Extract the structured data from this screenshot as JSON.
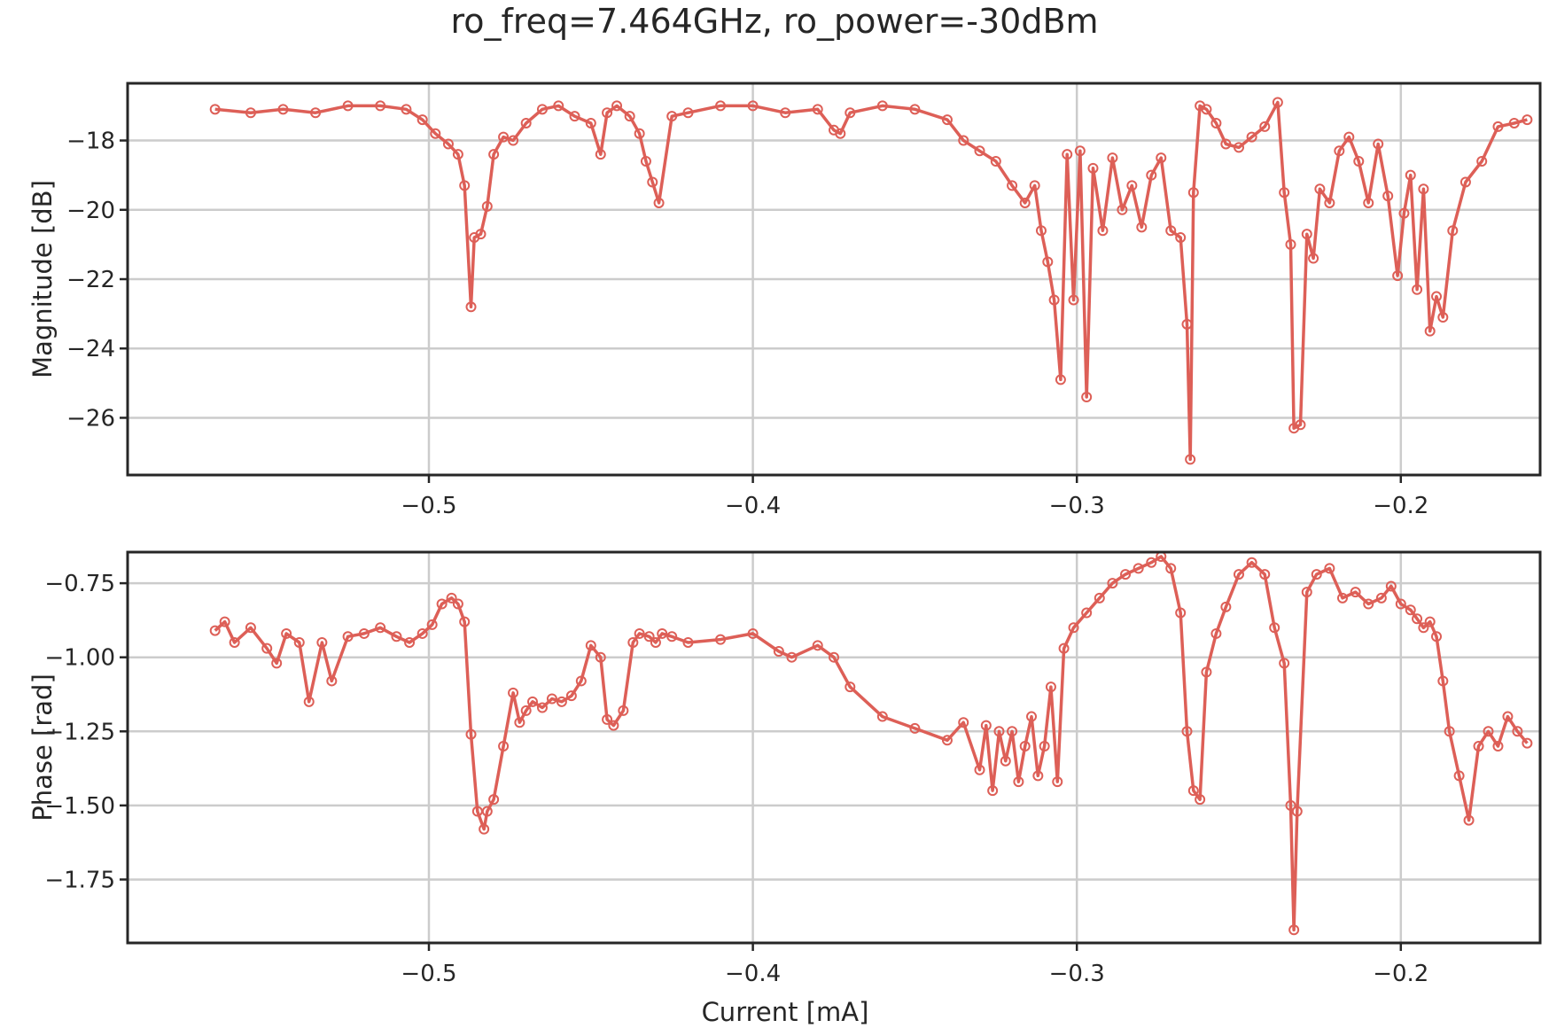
{
  "title": "ro_freq=7.464GHz, ro_power=-30dBm",
  "colors": {
    "series": "#dd5f57",
    "grid": "#cccccc",
    "axes": "#262626"
  },
  "chart_data": [
    {
      "type": "line",
      "ylabel": "Magnitude [dB]",
      "xlabel": "",
      "xlim": [
        -0.593,
        -0.157
      ],
      "ylim": [
        -27.65,
        -16.35
      ],
      "xticks": [
        -0.5,
        -0.4,
        -0.3,
        -0.2
      ],
      "xtick_labels": [
        "−0.5",
        "−0.4",
        "−0.3",
        "−0.2"
      ],
      "yticks": [
        -18,
        -20,
        -22,
        -24,
        -26
      ],
      "ytick_labels": [
        "−18",
        "−20",
        "−22",
        "−24",
        "−26"
      ],
      "grid": true,
      "marker": "open-circle",
      "x": [
        -0.566,
        -0.555,
        -0.545,
        -0.535,
        -0.525,
        -0.515,
        -0.507,
        -0.502,
        -0.498,
        -0.494,
        -0.491,
        -0.489,
        -0.487,
        -0.486,
        -0.484,
        -0.482,
        -0.48,
        -0.477,
        -0.474,
        -0.47,
        -0.465,
        -0.46,
        -0.455,
        -0.45,
        -0.447,
        -0.445,
        -0.442,
        -0.438,
        -0.435,
        -0.433,
        -0.431,
        -0.429,
        -0.425,
        -0.42,
        -0.41,
        -0.4,
        -0.39,
        -0.38,
        -0.375,
        -0.373,
        -0.37,
        -0.36,
        -0.35,
        -0.34,
        -0.335,
        -0.33,
        -0.325,
        -0.32,
        -0.316,
        -0.313,
        -0.311,
        -0.309,
        -0.307,
        -0.305,
        -0.303,
        -0.301,
        -0.299,
        -0.297,
        -0.295,
        -0.292,
        -0.289,
        -0.286,
        -0.283,
        -0.28,
        -0.277,
        -0.274,
        -0.271,
        -0.268,
        -0.266,
        -0.265,
        -0.264,
        -0.262,
        -0.26,
        -0.257,
        -0.254,
        -0.25,
        -0.246,
        -0.242,
        -0.238,
        -0.236,
        -0.234,
        -0.233,
        -0.231,
        -0.229,
        -0.227,
        -0.225,
        -0.222,
        -0.219,
        -0.216,
        -0.213,
        -0.21,
        -0.207,
        -0.204,
        -0.201,
        -0.199,
        -0.197,
        -0.195,
        -0.193,
        -0.191,
        -0.189,
        -0.187,
        -0.184,
        -0.18,
        -0.175,
        -0.17,
        -0.165,
        -0.161
      ],
      "y": [
        -17.1,
        -17.2,
        -17.1,
        -17.2,
        -17.0,
        -17.0,
        -17.1,
        -17.4,
        -17.8,
        -18.1,
        -18.4,
        -19.3,
        -22.8,
        -20.8,
        -20.7,
        -19.9,
        -18.4,
        -17.9,
        -18.0,
        -17.5,
        -17.1,
        -17.0,
        -17.3,
        -17.5,
        -18.4,
        -17.2,
        -17.0,
        -17.3,
        -17.8,
        -18.6,
        -19.2,
        -19.8,
        -17.3,
        -17.2,
        -17.0,
        -17.0,
        -17.2,
        -17.1,
        -17.7,
        -17.8,
        -17.2,
        -17.0,
        -17.1,
        -17.4,
        -18.0,
        -18.3,
        -18.6,
        -19.3,
        -19.8,
        -19.3,
        -20.6,
        -21.5,
        -22.6,
        -24.9,
        -18.4,
        -22.6,
        -18.3,
        -25.4,
        -18.8,
        -20.6,
        -18.5,
        -20.0,
        -19.3,
        -20.5,
        -19.0,
        -18.5,
        -20.6,
        -20.8,
        -23.3,
        -27.2,
        -19.5,
        -17.0,
        -17.1,
        -17.5,
        -18.1,
        -18.2,
        -17.9,
        -17.6,
        -16.9,
        -19.5,
        -21.0,
        -26.3,
        -26.2,
        -20.7,
        -21.4,
        -19.4,
        -19.8,
        -18.3,
        -17.9,
        -18.6,
        -19.8,
        -18.1,
        -19.6,
        -21.9,
        -20.1,
        -19.0,
        -22.3,
        -19.4,
        -23.5,
        -22.5,
        -23.1,
        -20.6,
        -19.2,
        -18.6,
        -17.6,
        -17.5,
        -17.4
      ]
    },
    {
      "type": "line",
      "ylabel": "Phase [rad]",
      "xlabel": "Current [mA]",
      "xlim": [
        -0.593,
        -0.157
      ],
      "ylim": [
        -1.964,
        -0.645
      ],
      "xticks": [
        -0.5,
        -0.4,
        -0.3,
        -0.2
      ],
      "xtick_labels": [
        "−0.5",
        "−0.4",
        "−0.3",
        "−0.2"
      ],
      "yticks": [
        -0.75,
        -1.0,
        -1.25,
        -1.5,
        -1.75
      ],
      "ytick_labels": [
        "−0.75",
        "−1.00",
        "−1.25",
        "−1.50",
        "−1.75"
      ],
      "grid": true,
      "marker": "open-circle",
      "x": [
        -0.566,
        -0.563,
        -0.56,
        -0.555,
        -0.55,
        -0.547,
        -0.544,
        -0.54,
        -0.537,
        -0.533,
        -0.53,
        -0.525,
        -0.52,
        -0.515,
        -0.51,
        -0.506,
        -0.502,
        -0.499,
        -0.496,
        -0.493,
        -0.491,
        -0.489,
        -0.487,
        -0.485,
        -0.483,
        -0.482,
        -0.48,
        -0.477,
        -0.474,
        -0.472,
        -0.47,
        -0.468,
        -0.465,
        -0.462,
        -0.459,
        -0.456,
        -0.453,
        -0.45,
        -0.447,
        -0.445,
        -0.443,
        -0.44,
        -0.437,
        -0.435,
        -0.432,
        -0.43,
        -0.428,
        -0.425,
        -0.42,
        -0.41,
        -0.4,
        -0.392,
        -0.388,
        -0.38,
        -0.375,
        -0.37,
        -0.36,
        -0.35,
        -0.34,
        -0.335,
        -0.33,
        -0.328,
        -0.326,
        -0.324,
        -0.322,
        -0.32,
        -0.318,
        -0.316,
        -0.314,
        -0.312,
        -0.31,
        -0.308,
        -0.306,
        -0.304,
        -0.301,
        -0.297,
        -0.293,
        -0.289,
        -0.285,
        -0.281,
        -0.277,
        -0.274,
        -0.271,
        -0.268,
        -0.266,
        -0.264,
        -0.262,
        -0.26,
        -0.257,
        -0.254,
        -0.25,
        -0.246,
        -0.242,
        -0.239,
        -0.236,
        -0.234,
        -0.233,
        -0.232,
        -0.229,
        -0.226,
        -0.222,
        -0.218,
        -0.214,
        -0.21,
        -0.206,
        -0.203,
        -0.2,
        -0.197,
        -0.195,
        -0.193,
        -0.191,
        -0.189,
        -0.187,
        -0.185,
        -0.182,
        -0.179,
        -0.176,
        -0.173,
        -0.17,
        -0.167,
        -0.164,
        -0.161
      ],
      "y": [
        -0.91,
        -0.88,
        -0.95,
        -0.9,
        -0.97,
        -1.02,
        -0.92,
        -0.95,
        -1.15,
        -0.95,
        -1.08,
        -0.93,
        -0.92,
        -0.9,
        -0.93,
        -0.95,
        -0.92,
        -0.89,
        -0.82,
        -0.8,
        -0.82,
        -0.88,
        -1.26,
        -1.52,
        -1.58,
        -1.52,
        -1.48,
        -1.3,
        -1.12,
        -1.22,
        -1.18,
        -1.15,
        -1.17,
        -1.14,
        -1.15,
        -1.13,
        -1.08,
        -0.96,
        -1.0,
        -1.21,
        -1.23,
        -1.18,
        -0.95,
        -0.92,
        -0.93,
        -0.95,
        -0.92,
        -0.93,
        -0.95,
        -0.94,
        -0.92,
        -0.98,
        -1.0,
        -0.96,
        -1.0,
        -1.1,
        -1.2,
        -1.24,
        -1.28,
        -1.22,
        -1.38,
        -1.23,
        -1.45,
        -1.25,
        -1.35,
        -1.25,
        -1.42,
        -1.3,
        -1.2,
        -1.4,
        -1.3,
        -1.1,
        -1.42,
        -0.97,
        -0.9,
        -0.85,
        -0.8,
        -0.75,
        -0.72,
        -0.7,
        -0.68,
        -0.66,
        -0.7,
        -0.85,
        -1.25,
        -1.45,
        -1.48,
        -1.05,
        -0.92,
        -0.83,
        -0.72,
        -0.68,
        -0.72,
        -0.9,
        -1.02,
        -1.5,
        -1.92,
        -1.52,
        -0.78,
        -0.72,
        -0.7,
        -0.8,
        -0.78,
        -0.82,
        -0.8,
        -0.76,
        -0.82,
        -0.84,
        -0.87,
        -0.9,
        -0.88,
        -0.93,
        -1.08,
        -1.25,
        -1.4,
        -1.55,
        -1.3,
        -1.25,
        -1.3,
        -1.2,
        -1.25,
        -1.29
      ]
    }
  ]
}
